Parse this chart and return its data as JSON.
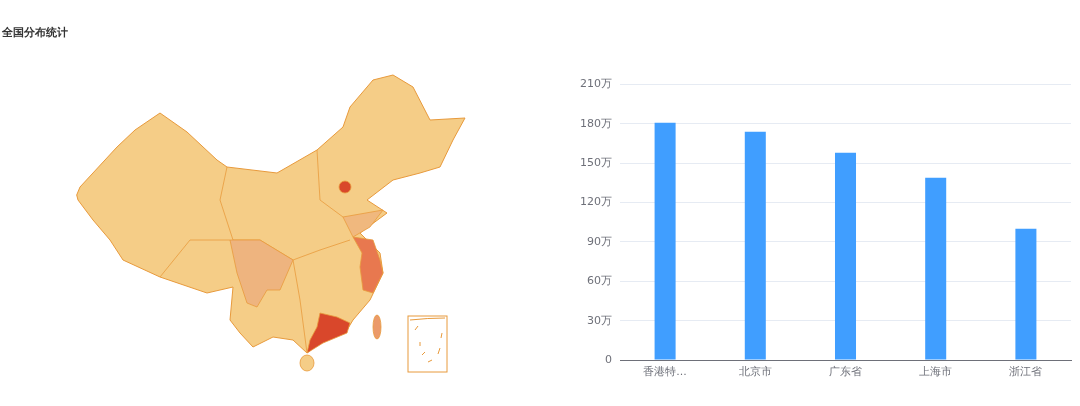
{
  "chart_data": {
    "type": "bar",
    "title": "全国分布统计",
    "categories": [
      "香港特...",
      "北京市",
      "广东省",
      "上海市",
      "浙江省"
    ],
    "values": [
      181,
      174,
      158,
      139,
      100
    ],
    "color": "#409eff",
    "ylim": [
      0,
      210
    ],
    "yticks": [
      0,
      {
        "value": 30,
        "label": "30万"
      },
      {
        "value": 60,
        "label": "60万"
      },
      {
        "value": 90,
        "label": "90万"
      },
      {
        "value": 120,
        "label": "120万"
      },
      {
        "value": 150,
        "label": "150万"
      },
      {
        "value": 180,
        "label": "180万"
      },
      {
        "value": 210,
        "label": "210万"
      }
    ],
    "grid": "y"
  }
}
